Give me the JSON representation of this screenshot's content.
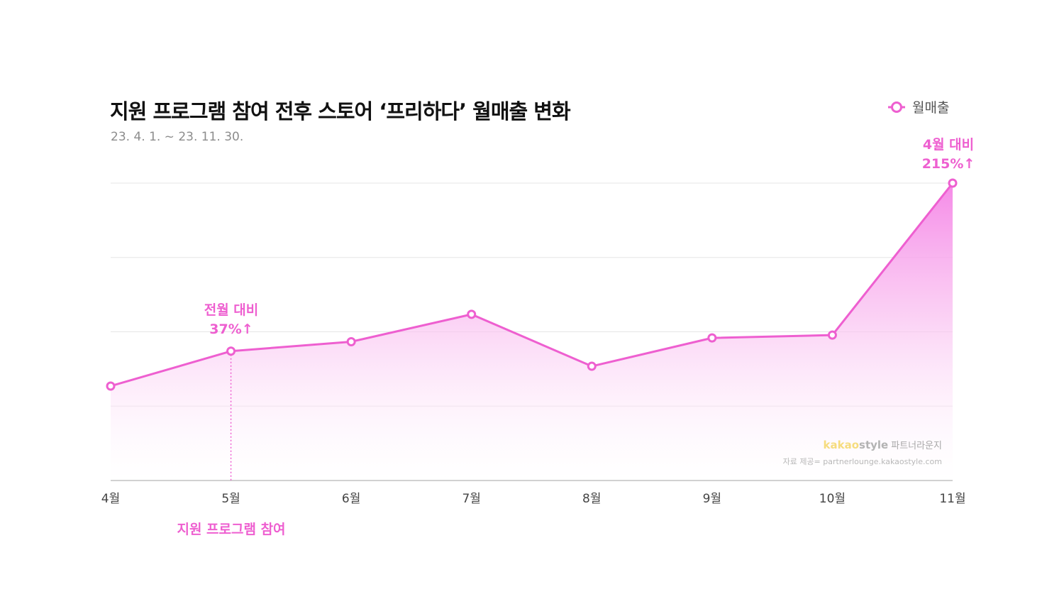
{
  "header": {
    "title": "지원 프로그램 참여 전후 스토어 ‘프리하다’ 월매출 변화",
    "subtitle": "23. 4. 1. ~ 23. 11. 30."
  },
  "legend": {
    "label": "월매출",
    "icon": "ring-marker-icon"
  },
  "annotations": {
    "mom": {
      "line1": "전월 대비",
      "line2": "37%↑"
    },
    "vs_april": {
      "line1": "4월 대비",
      "line2": "215%↑"
    },
    "event": "지원 프로그램 참여"
  },
  "watermark": {
    "brand_kakao": "kakao",
    "brand_style": "style",
    "brand_suffix": "파트너라운지",
    "source": "자료 제공= partnerlounge.kakaostyle.com"
  },
  "colors": {
    "accent": "#ee5fd0",
    "grid": "#e6e6e6",
    "axis": "#cccccc"
  },
  "chart_data": {
    "type": "area",
    "categories": [
      "4월",
      "5월",
      "6월",
      "7월",
      "8월",
      "9월",
      "10월",
      "11월"
    ],
    "series": [
      {
        "name": "월매출",
        "values": [
          100,
          137,
          147,
          176,
          121,
          151,
          154,
          315
        ]
      }
    ],
    "ylim": [
      0,
      315
    ],
    "grid": true,
    "legend_position": "top-right",
    "event_marker": {
      "category": "5월",
      "label": "지원 프로그램 참여"
    }
  }
}
